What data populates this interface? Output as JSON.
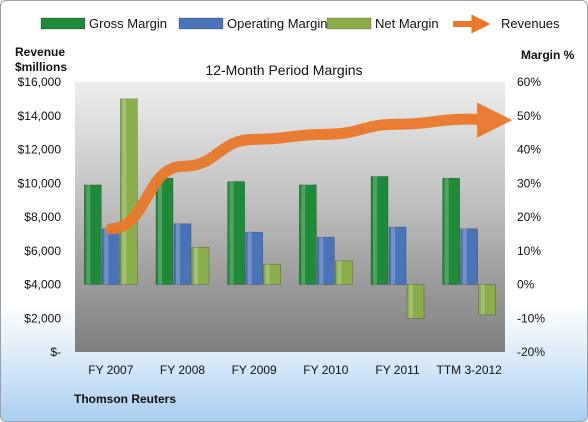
{
  "chart_data": {
    "type": "bar",
    "title": "12-Month Period Margins",
    "categories": [
      "FY 2007",
      "FY 2008",
      "FY 2009",
      "FY 2010",
      "FY 2011",
      "TTM 3-2012"
    ],
    "left_axis": {
      "label_line1": "Revenue",
      "label_line2": "$millions",
      "ylim": [
        0,
        16000
      ],
      "ticks": [
        "$-",
        "$2,000",
        "$4,000",
        "$6,000",
        "$8,000",
        "$10,000",
        "$12,000",
        "$14,000",
        "$16,000"
      ]
    },
    "right_axis": {
      "label": "Margin %",
      "ylim": [
        -20,
        60
      ],
      "ticks": [
        "-20%",
        "-10%",
        "0%",
        "10%",
        "20%",
        "30%",
        "40%",
        "50%",
        "60%"
      ]
    },
    "series": [
      {
        "name": "Gross Margin",
        "axis": "right",
        "color": "#1f8a3a",
        "values": [
          29.5,
          31.5,
          30.5,
          29.5,
          32,
          31.5
        ]
      },
      {
        "name": "Operating Margin",
        "axis": "right",
        "color": "#4a74b8",
        "values": [
          16.5,
          18,
          15.5,
          14,
          17,
          16.5
        ]
      },
      {
        "name": "Net Margin",
        "axis": "right",
        "color": "#8aae4a",
        "values": [
          55,
          11,
          6,
          7,
          -10,
          -9
        ]
      },
      {
        "name": "Revenues",
        "axis": "left",
        "color": "#e8782a",
        "type": "line",
        "values": [
          7300,
          11000,
          12600,
          12900,
          13500,
          13800
        ]
      }
    ],
    "legend_position": "top",
    "grid": false,
    "source": "Thomson Reuters"
  }
}
